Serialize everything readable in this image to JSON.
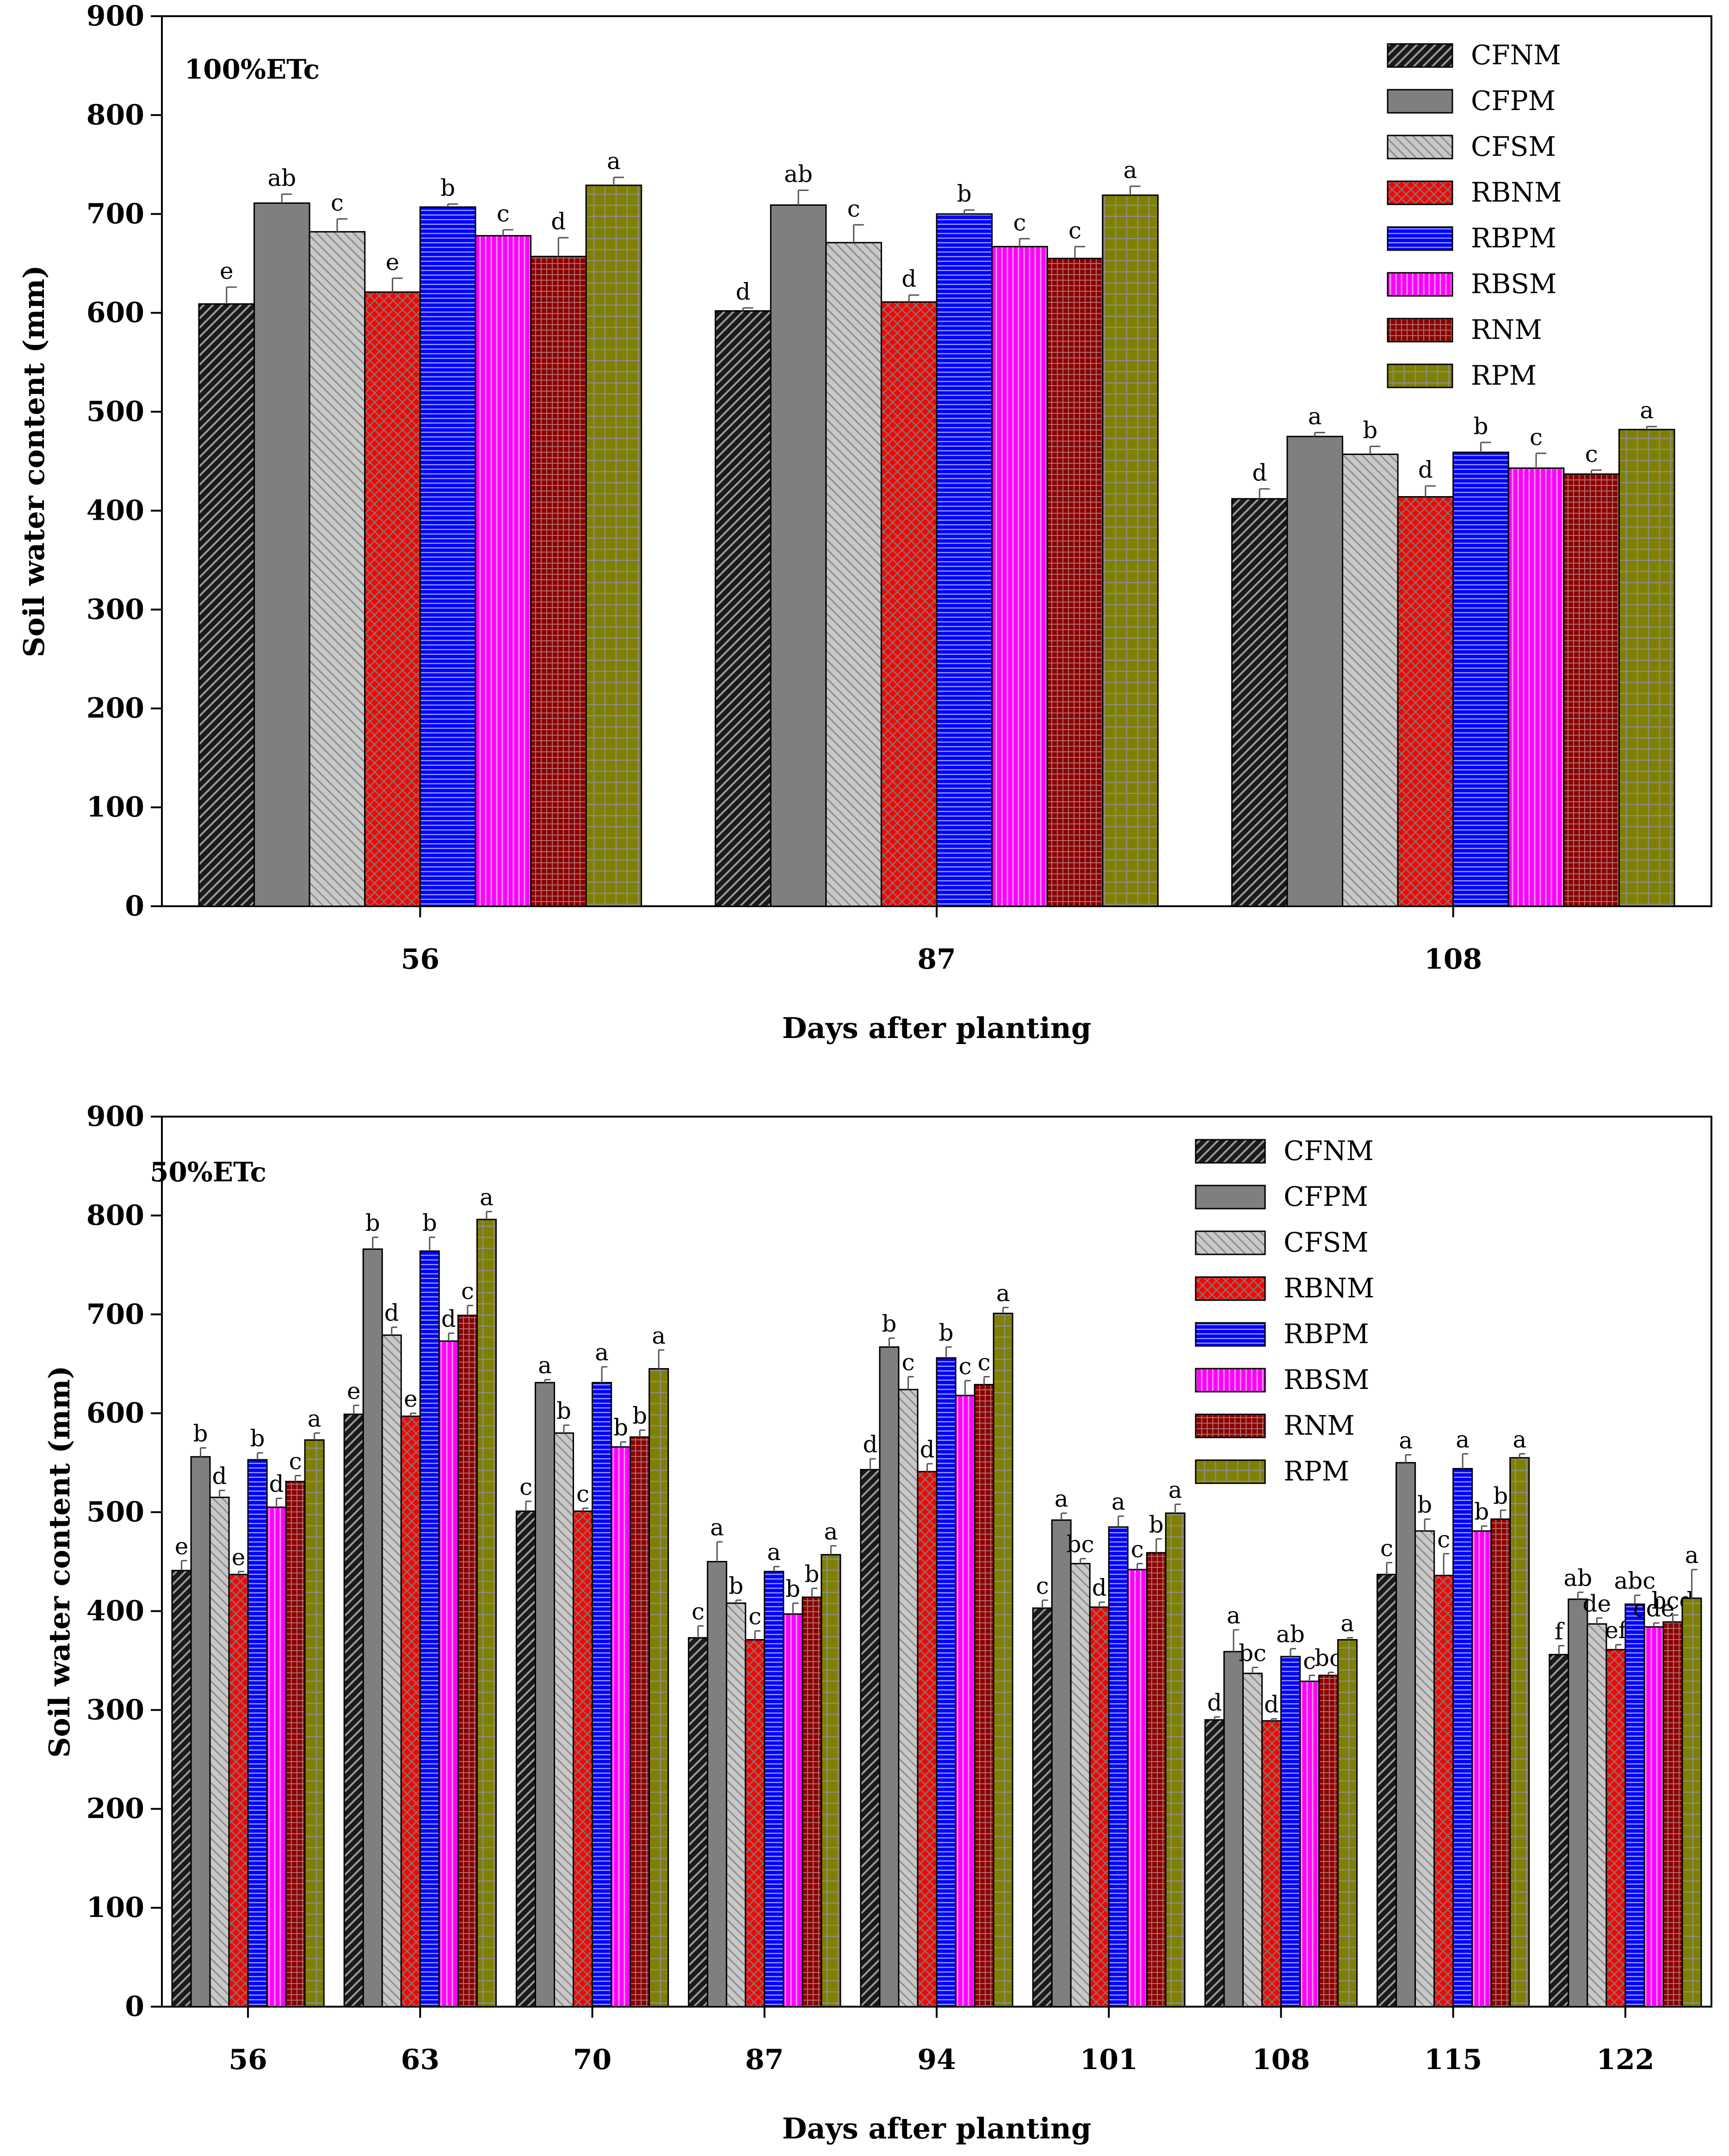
{
  "series_styles": {
    "CFNM": {
      "fill": "#1a1a1a",
      "pattern": "hatch-ltr-light"
    },
    "CFPM": {
      "fill": "#7f7f7f",
      "pattern": "solid"
    },
    "CFSM": {
      "fill": "#c8c8c8",
      "pattern": "hatch-rtl"
    },
    "RBNM": {
      "fill": "#ff0000",
      "pattern": "crosshatch"
    },
    "RBPM": {
      "fill": "#0000ff",
      "pattern": "hlines"
    },
    "RBSM": {
      "fill": "#ff00ff",
      "pattern": "vlines"
    },
    "RNM": {
      "fill": "#8b0000",
      "pattern": "grid-small"
    },
    "RPM": {
      "fill": "#808000",
      "pattern": "grid"
    }
  },
  "chart_data": [
    {
      "type": "bar",
      "panel_label": "100%ETc",
      "xlabel": "Days after planting",
      "ylabel": "Soil water content (mm)",
      "ylim": [
        0,
        900
      ],
      "yticks": [
        "0",
        "100",
        "200",
        "300",
        "400",
        "500",
        "600",
        "700",
        "800",
        "900"
      ],
      "legend_position": "top-right",
      "categories": [
        "56",
        "87",
        "108"
      ],
      "series": [
        {
          "name": "CFNM",
          "values": [
            609,
            602,
            412
          ],
          "errors": [
            17,
            3,
            10
          ],
          "letters": [
            "e",
            "d",
            "d"
          ]
        },
        {
          "name": "CFPM",
          "values": [
            711,
            709,
            475
          ],
          "errors": [
            9,
            15,
            4
          ],
          "letters": [
            "ab",
            "ab",
            "a"
          ]
        },
        {
          "name": "CFSM",
          "values": [
            682,
            671,
            457
          ],
          "errors": [
            13,
            18,
            8
          ],
          "letters": [
            "c",
            "c",
            "b"
          ]
        },
        {
          "name": "RBNM",
          "values": [
            621,
            611,
            414
          ],
          "errors": [
            14,
            7,
            11
          ],
          "letters": [
            "e",
            "d",
            "d"
          ]
        },
        {
          "name": "RBPM",
          "values": [
            707,
            700,
            459
          ],
          "errors": [
            3,
            4,
            10
          ],
          "letters": [
            "b",
            "b",
            "b"
          ]
        },
        {
          "name": "RBSM",
          "values": [
            678,
            667,
            443
          ],
          "errors": [
            6,
            8,
            15
          ],
          "letters": [
            "c",
            "c",
            "c"
          ]
        },
        {
          "name": "RNM",
          "values": [
            657,
            655,
            437
          ],
          "errors": [
            19,
            12,
            4
          ],
          "letters": [
            "d",
            "c",
            "c"
          ]
        },
        {
          "name": "RPM",
          "values": [
            729,
            719,
            482
          ],
          "errors": [
            8,
            9,
            3
          ],
          "letters": [
            "a",
            "a",
            "a"
          ]
        }
      ]
    },
    {
      "type": "bar",
      "panel_label": "50%ETc",
      "xlabel": "Days after planting",
      "ylabel": "Soil water content (mm)",
      "ylim": [
        0,
        900
      ],
      "yticks": [
        "0",
        "100",
        "200",
        "300",
        "400",
        "500",
        "600",
        "700",
        "800",
        "900"
      ],
      "legend_position": "top-right",
      "categories": [
        "56",
        "63",
        "70",
        "87",
        "94",
        "101",
        "108",
        "115",
        "122"
      ],
      "series": [
        {
          "name": "CFNM",
          "values": [
            441,
            599,
            501,
            373,
            543,
            403,
            290,
            437,
            356
          ],
          "errors": [
            10,
            9,
            10,
            12,
            11,
            8,
            3,
            12,
            9
          ],
          "letters": [
            "e",
            "e",
            "c",
            "c",
            "d",
            "c",
            "d",
            "c",
            "f"
          ]
        },
        {
          "name": "CFPM",
          "values": [
            556,
            766,
            631,
            450,
            667,
            492,
            359,
            550,
            412
          ],
          "errors": [
            9,
            12,
            3,
            20,
            9,
            7,
            22,
            8,
            7
          ],
          "letters": [
            "b",
            "b",
            "a",
            "a",
            "b",
            "a",
            "a",
            "a",
            "ab"
          ]
        },
        {
          "name": "CFSM",
          "values": [
            515,
            679,
            580,
            408,
            624,
            448,
            337,
            481,
            387
          ],
          "errors": [
            7,
            8,
            8,
            3,
            13,
            5,
            6,
            12,
            6
          ],
          "letters": [
            "d",
            "d",
            "b",
            "b",
            "c",
            "bc",
            "bc",
            "b",
            "de"
          ]
        },
        {
          "name": "RBNM",
          "values": [
            437,
            597,
            501,
            371,
            541,
            404,
            289,
            436,
            361
          ],
          "errors": [
            3,
            3,
            3,
            9,
            8,
            5,
            2,
            22,
            5
          ],
          "letters": [
            "e",
            "e",
            "c",
            "c",
            "d",
            "d",
            "d",
            "c",
            "ef"
          ]
        },
        {
          "name": "RBPM",
          "values": [
            553,
            764,
            631,
            440,
            656,
            485,
            354,
            544,
            407
          ],
          "errors": [
            7,
            14,
            16,
            5,
            11,
            11,
            8,
            15,
            9
          ],
          "letters": [
            "b",
            "b",
            "a",
            "a",
            "b",
            "a",
            "ab",
            "a",
            "abc"
          ]
        },
        {
          "name": "RBSM",
          "values": [
            505,
            673,
            566,
            397,
            618,
            442,
            329,
            481,
            384
          ],
          "errors": [
            9,
            8,
            5,
            11,
            15,
            6,
            6,
            5,
            4
          ],
          "letters": [
            "d",
            "d",
            "b",
            "b",
            "c",
            "c",
            "c",
            "b",
            "cde"
          ]
        },
        {
          "name": "RNM",
          "values": [
            531,
            699,
            576,
            414,
            629,
            459,
            335,
            493,
            389
          ],
          "errors": [
            6,
            10,
            7,
            9,
            8,
            14,
            3,
            9,
            7
          ],
          "letters": [
            "c",
            "c",
            "b",
            "b",
            "c",
            "b",
            "bc",
            "b",
            "bcd"
          ]
        },
        {
          "name": "RPM",
          "values": [
            573,
            796,
            645,
            457,
            701,
            499,
            371,
            555,
            413
          ],
          "errors": [
            7,
            8,
            19,
            9,
            6,
            9,
            2,
            4,
            29
          ],
          "letters": [
            "a",
            "a",
            "a",
            "a",
            "a",
            "a",
            "a",
            "a",
            "a"
          ]
        }
      ]
    }
  ]
}
